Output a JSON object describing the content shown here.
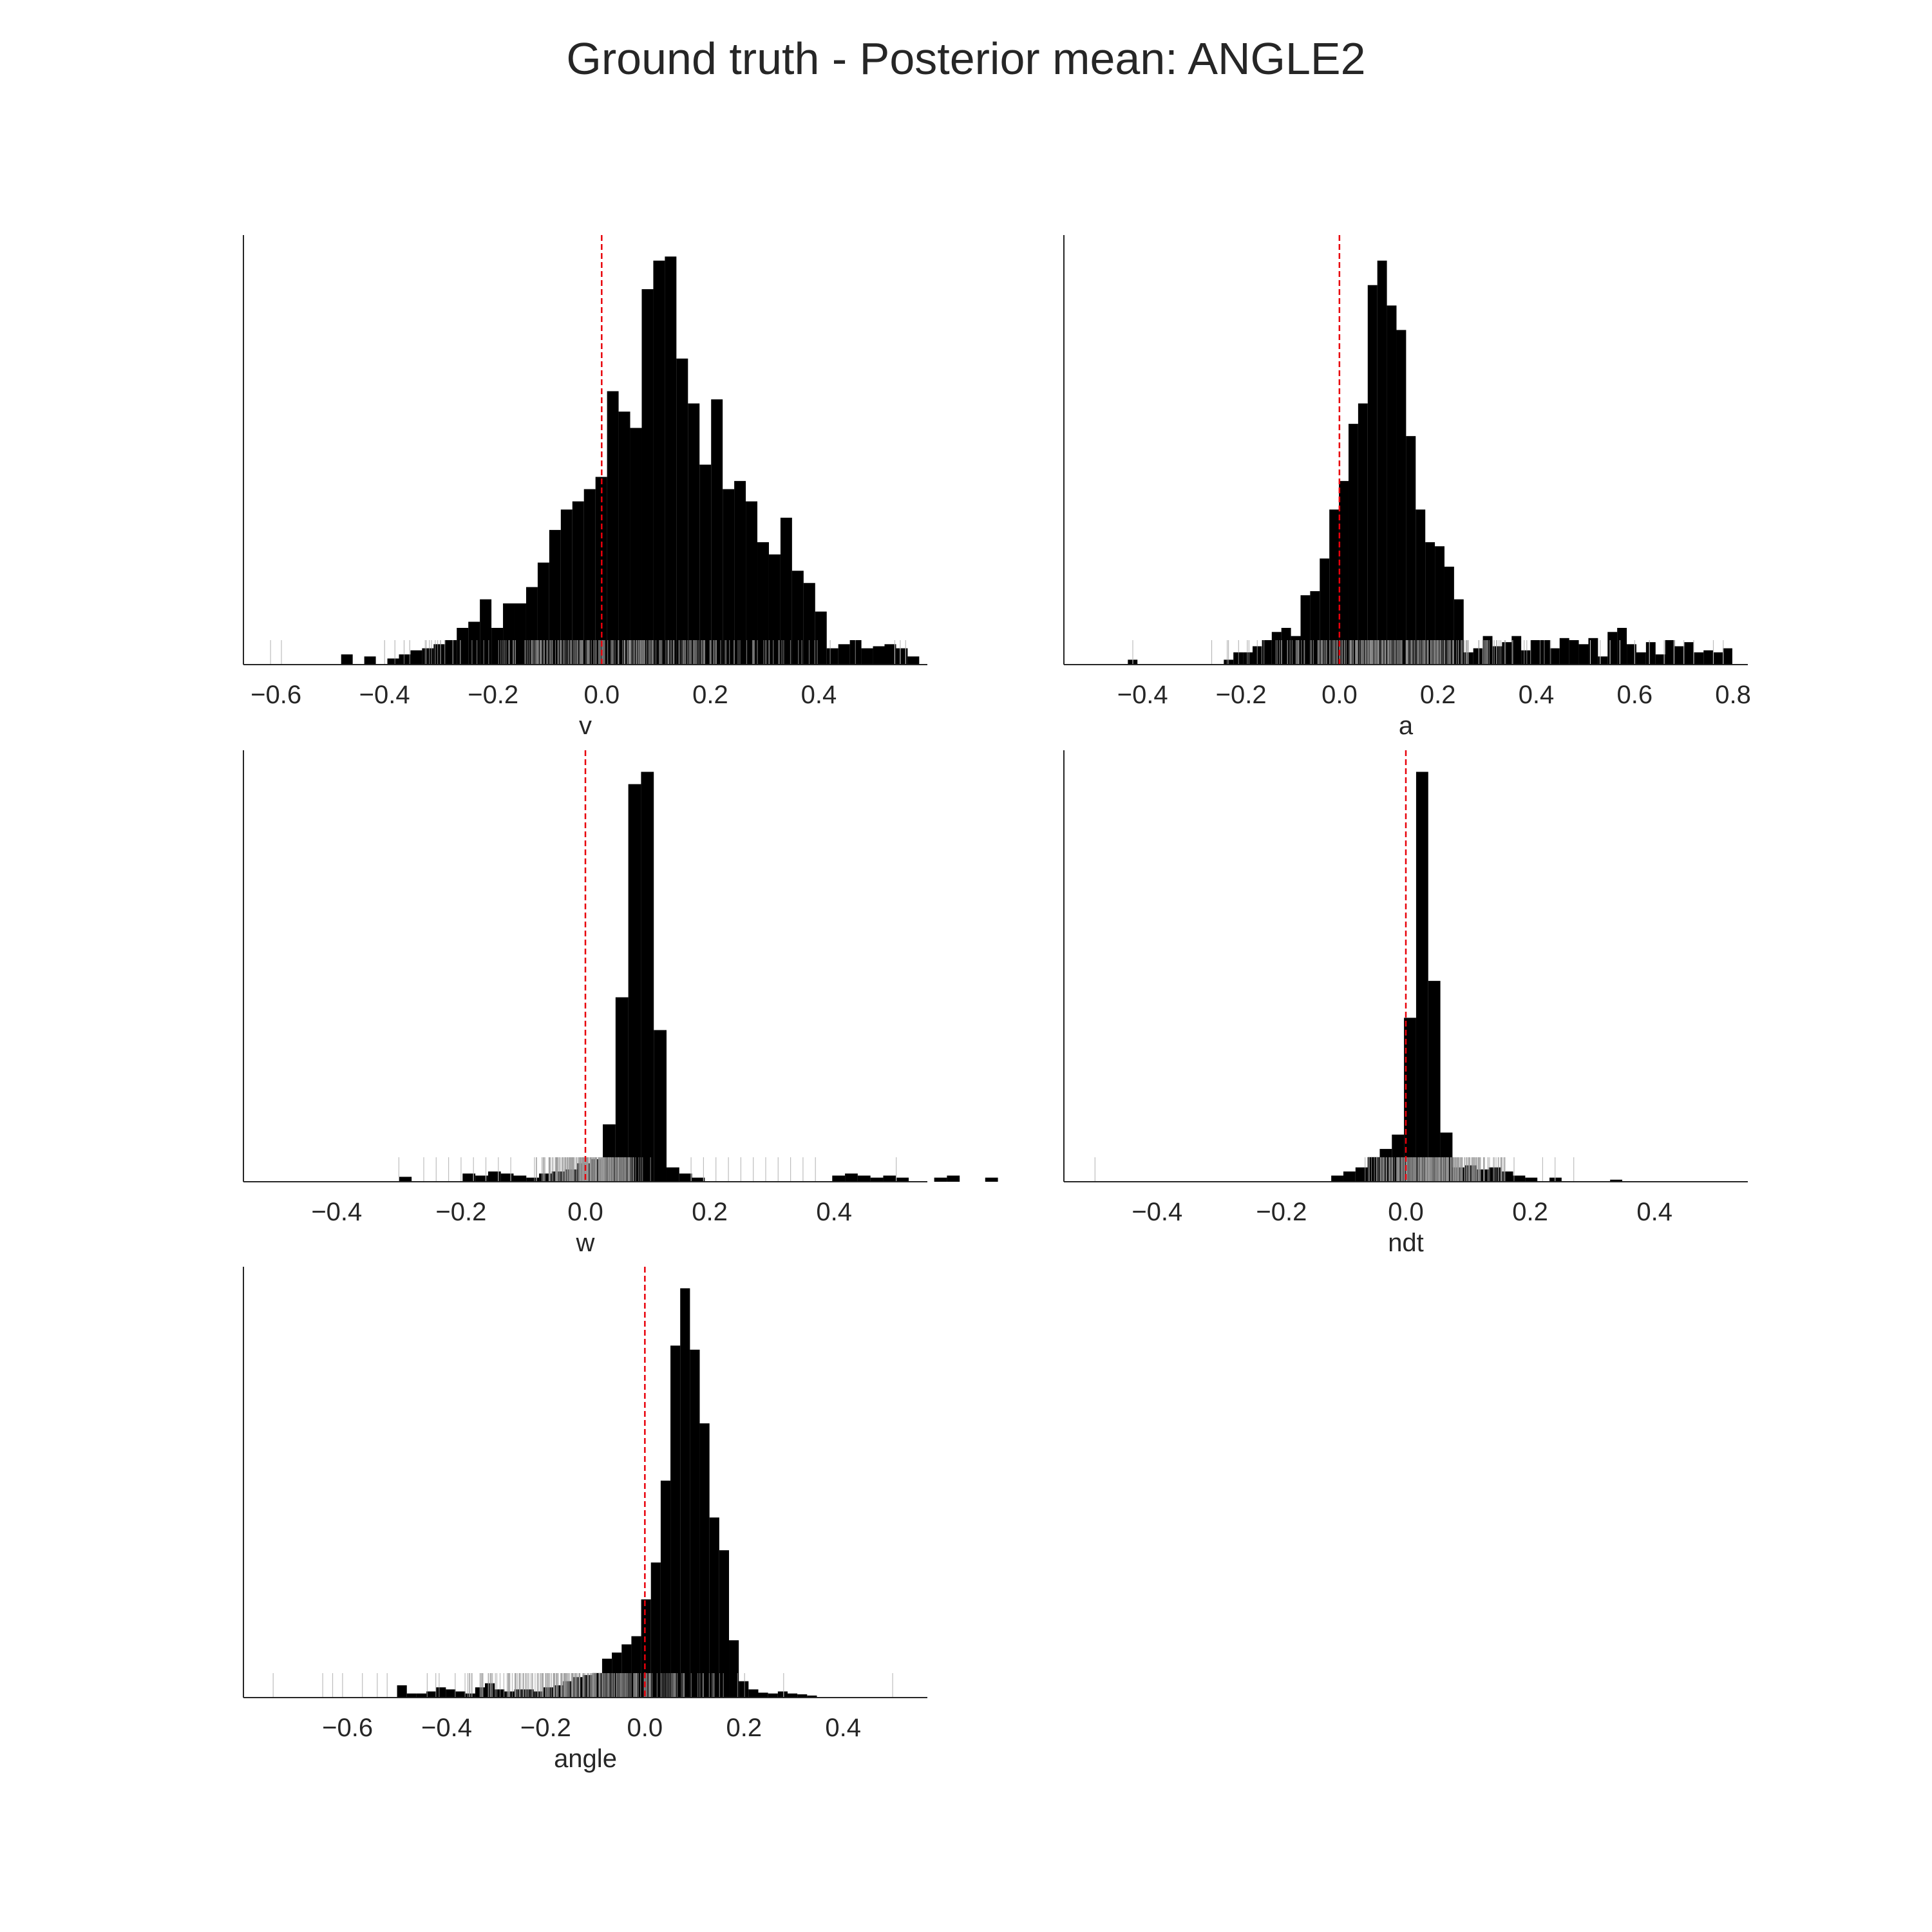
{
  "title": "Ground truth - Posterior mean: ANGLE2",
  "colors": {
    "bars": "#000000",
    "reference_line": "#e8000b",
    "rug": "#000000",
    "axis": "#262626",
    "background": "#ffffff"
  },
  "chart_data": [
    {
      "type": "histogram",
      "xlabel": "v",
      "xlim": [
        -0.66,
        0.6
      ],
      "xticks": [
        -0.6,
        -0.4,
        -0.2,
        0.0,
        0.2,
        0.4
      ],
      "tick_labels": [
        "−0.6",
        "−0.4",
        "−0.2",
        "0.0",
        "0.2",
        "0.4"
      ],
      "ymax": 1.0,
      "reference_line": 0.0,
      "bin_start": -0.48,
      "bin_width": 0.0213,
      "values": [
        0.025,
        0.0,
        0.02,
        0.0,
        0.015,
        0.025,
        0.035,
        0.04,
        0.05,
        0.06,
        0.09,
        0.105,
        0.16,
        0.09,
        0.15,
        0.15,
        0.19,
        0.25,
        0.33,
        0.38,
        0.4,
        0.43,
        0.46,
        0.67,
        0.62,
        0.58,
        0.92,
        0.99,
        1.0,
        0.75,
        0.64,
        0.49,
        0.65,
        0.43,
        0.45,
        0.4,
        0.3,
        0.27,
        0.36,
        0.23,
        0.2,
        0.13,
        0.04,
        0.05,
        0.06,
        0.04,
        0.045,
        0.05,
        0.04,
        0.02
      ],
      "rug_range": [
        -0.48,
        0.52
      ],
      "rug_outliers": [
        -0.61,
        -0.59,
        0.54,
        0.55,
        0.56
      ]
    },
    {
      "type": "histogram",
      "xlabel": "a",
      "xlim": [
        -0.56,
        0.83
      ],
      "xticks": [
        -0.4,
        -0.2,
        0.0,
        0.2,
        0.4,
        0.6,
        0.8
      ],
      "tick_labels": [
        "−0.4",
        "−0.2",
        "0.0",
        "0.2",
        "0.4",
        "0.6",
        "0.8"
      ],
      "ymax": 1.0,
      "reference_line": 0.0,
      "bin_start": -0.43,
      "bin_width": 0.0195,
      "values": [
        0.012,
        0.0,
        0.0,
        0.0,
        0.0,
        0.0,
        0.0,
        0.0,
        0.0,
        0.0,
        0.012,
        0.03,
        0.03,
        0.045,
        0.06,
        0.08,
        0.09,
        0.07,
        0.17,
        0.18,
        0.26,
        0.38,
        0.45,
        0.59,
        0.64,
        0.93,
        0.99,
        0.88,
        0.82,
        0.56,
        0.38,
        0.3,
        0.29,
        0.24,
        0.16,
        0.03,
        0.04,
        0.07,
        0.045,
        0.055,
        0.07,
        0.035,
        0.06,
        0.06,
        0.04,
        0.065,
        0.06,
        0.05,
        0.065,
        0.02,
        0.08,
        0.09,
        0.05,
        0.03,
        0.055,
        0.025,
        0.06,
        0.045,
        0.055,
        0.03,
        0.035,
        0.03,
        0.04
      ],
      "rug_range": [
        -0.28,
        0.5
      ],
      "rug_outliers": [
        -0.42,
        0.51,
        0.53,
        0.55,
        0.57,
        0.6,
        0.63,
        0.66,
        0.68,
        0.7,
        0.72,
        0.76,
        0.78
      ]
    },
    {
      "type": "histogram",
      "xlabel": "w",
      "xlim": [
        -0.55,
        0.55
      ],
      "xticks": [
        -0.4,
        -0.2,
        0.0,
        0.2,
        0.4
      ],
      "tick_labels": [
        "−0.4",
        "−0.2",
        "0.0",
        "0.2",
        "0.4"
      ],
      "ymax": 1.0,
      "reference_line": 0.0,
      "bin_start": -0.3,
      "bin_width": 0.0205,
      "values": [
        0.012,
        0.0,
        0.0,
        0.0,
        0.0,
        0.02,
        0.015,
        0.025,
        0.02,
        0.015,
        0.01,
        0.02,
        0.025,
        0.03,
        0.045,
        0.055,
        0.14,
        0.45,
        0.97,
        1.0,
        0.37,
        0.035,
        0.02,
        0.01,
        0.0,
        0.0,
        0.0,
        0.0,
        0.0,
        0.0,
        0.0,
        0.0,
        0.0,
        0.0,
        0.015,
        0.02,
        0.015,
        0.01,
        0.015,
        0.01,
        0.0,
        0.0,
        0.01,
        0.015,
        0.0,
        0.0,
        0.01
      ],
      "rug_range": [
        -0.1,
        0.12
      ],
      "rug_outliers": [
        -0.3,
        -0.26,
        -0.24,
        -0.22,
        -0.2,
        -0.18,
        -0.16,
        -0.14,
        -0.12,
        0.17,
        0.19,
        0.21,
        0.23,
        0.25,
        0.27,
        0.29,
        0.31,
        0.33,
        0.35,
        0.37,
        0.5
      ]
    },
    {
      "type": "histogram",
      "xlabel": "ndt",
      "xlim": [
        -0.55,
        0.55
      ],
      "xticks": [
        -0.4,
        -0.2,
        0.0,
        0.2,
        0.4
      ],
      "tick_labels": [
        "−0.4",
        "−0.2",
        "0.0",
        "0.2",
        "0.4"
      ],
      "ymax": 1.0,
      "reference_line": 0.0,
      "bin_start": -0.12,
      "bin_width": 0.0195,
      "values": [
        0.015,
        0.025,
        0.035,
        0.06,
        0.08,
        0.115,
        0.4,
        1.0,
        0.49,
        0.12,
        0.035,
        0.04,
        0.03,
        0.035,
        0.025,
        0.015,
        0.01,
        0.0,
        0.01,
        0.0,
        0.0,
        0.0,
        0.0,
        0.005
      ],
      "rug_range": [
        -0.12,
        0.2
      ],
      "rug_outliers": [
        -0.5,
        0.22,
        0.24,
        0.27
      ]
    },
    {
      "type": "histogram",
      "xlabel": "angle",
      "xlim": [
        -0.81,
        0.57
      ],
      "xticks": [
        -0.6,
        -0.4,
        -0.2,
        0.0,
        0.2,
        0.4
      ],
      "tick_labels": [
        "−0.6",
        "−0.4",
        "−0.2",
        "0.0",
        "0.2",
        "0.4"
      ],
      "ymax": 1.0,
      "reference_line": 0.0,
      "bin_start": -0.5,
      "bin_width": 0.0197,
      "values": [
        0.03,
        0.01,
        0.01,
        0.015,
        0.025,
        0.02,
        0.015,
        0.01,
        0.025,
        0.035,
        0.02,
        0.015,
        0.02,
        0.02,
        0.015,
        0.025,
        0.03,
        0.04,
        0.05,
        0.055,
        0.06,
        0.095,
        0.11,
        0.13,
        0.15,
        0.24,
        0.33,
        0.53,
        0.86,
        1.0,
        0.85,
        0.67,
        0.44,
        0.36,
        0.14,
        0.04,
        0.02,
        0.012,
        0.01,
        0.015,
        0.01,
        0.008,
        0.005
      ],
      "rug_range": [
        -0.5,
        0.26
      ],
      "rug_outliers": [
        -0.75,
        -0.65,
        -0.63,
        -0.61,
        -0.57,
        -0.54,
        -0.52,
        0.28,
        0.5
      ]
    }
  ]
}
